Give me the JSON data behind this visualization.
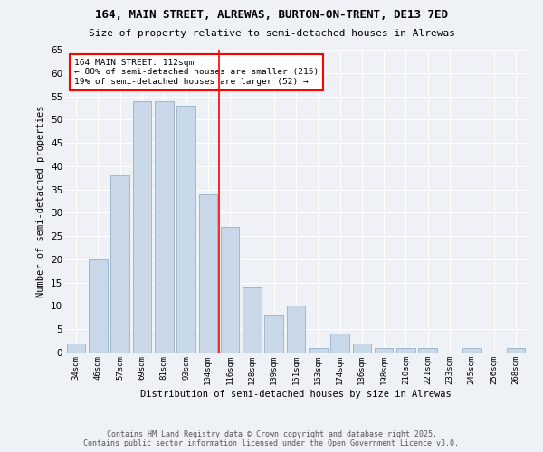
{
  "title1": "164, MAIN STREET, ALREWAS, BURTON-ON-TRENT, DE13 7ED",
  "title2": "Size of property relative to semi-detached houses in Alrewas",
  "xlabel": "Distribution of semi-detached houses by size in Alrewas",
  "ylabel": "Number of semi-detached properties",
  "categories": [
    "34sqm",
    "46sqm",
    "57sqm",
    "69sqm",
    "81sqm",
    "93sqm",
    "104sqm",
    "116sqm",
    "128sqm",
    "139sqm",
    "151sqm",
    "163sqm",
    "174sqm",
    "186sqm",
    "198sqm",
    "210sqm",
    "221sqm",
    "233sqm",
    "245sqm",
    "256sqm",
    "268sqm"
  ],
  "values": [
    2,
    20,
    38,
    54,
    54,
    53,
    34,
    27,
    14,
    8,
    10,
    1,
    4,
    2,
    1,
    1,
    1,
    0,
    1,
    0,
    1
  ],
  "bar_color": "#c8d8e8",
  "bar_edge_color": "#a0b8cc",
  "property_line_index": 7,
  "annotation_title": "164 MAIN STREET: 112sqm",
  "annotation_line1": "← 80% of semi-detached houses are smaller (215)",
  "annotation_line2": "19% of semi-detached houses are larger (52) →",
  "ylim": [
    0,
    65
  ],
  "yticks": [
    0,
    5,
    10,
    15,
    20,
    25,
    30,
    35,
    40,
    45,
    50,
    55,
    60,
    65
  ],
  "footer": "Contains HM Land Registry data © Crown copyright and database right 2025.\nContains public sector information licensed under the Open Government Licence v3.0.",
  "bg_color": "#eef2f6",
  "grid_color": "#ffffff"
}
